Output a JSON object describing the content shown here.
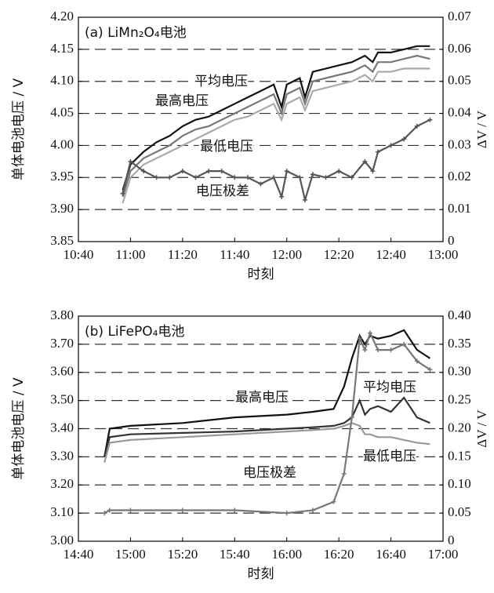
{
  "chart_data": [
    {
      "type": "line",
      "title": "(a) LiMn₂O₄电池",
      "x_label": "时刻",
      "y_label": "单体电池电压 / V",
      "y2_label": "ΔV / V",
      "grid": true,
      "xlim": [
        "10:40",
        "13:00"
      ],
      "xticks": [
        "10:40",
        "11:00",
        "11:20",
        "11:40",
        "12:00",
        "12:20",
        "12:40",
        "13:00"
      ],
      "ylim": [
        3.85,
        4.2
      ],
      "yticks": [
        3.85,
        {
          "value": 3.9,
          "label": "3.90"
        },
        3.95,
        {
          "value": 4.0,
          "label": "4.00"
        },
        4.05,
        {
          "value": 4.1,
          "label": "4.10"
        },
        4.15,
        {
          "value": 4.2,
          "label": "4.20"
        }
      ],
      "y2lim": [
        0,
        0.07
      ],
      "y2ticks": [
        0,
        0.01,
        0.02,
        0.03,
        0.04,
        0.05,
        0.06,
        0.07
      ],
      "x": [
        "10:57",
        "11:00",
        "11:05",
        "11:10",
        "11:15",
        "11:20",
        "11:25",
        "11:30",
        "11:35",
        "11:40",
        "11:45",
        "11:50",
        "11:55",
        "11:58",
        "12:00",
        "12:05",
        "12:07",
        "12:10",
        "12:15",
        "12:20",
        "12:25",
        "12:30",
        "12:33",
        "12:35",
        "12:40",
        "12:45",
        "12:50",
        "12:55"
      ],
      "series": [
        {
          "name": "最高电压",
          "color": "#111111",
          "values": [
            3.93,
            3.97,
            3.99,
            4.005,
            4.015,
            4.03,
            4.04,
            4.045,
            4.055,
            4.065,
            4.075,
            4.085,
            4.095,
            4.06,
            4.095,
            4.105,
            4.075,
            4.115,
            4.12,
            4.125,
            4.13,
            4.14,
            4.13,
            4.145,
            4.145,
            4.15,
            4.155,
            4.155
          ]
        },
        {
          "name": "平均电压",
          "color": "#777777",
          "values": [
            3.92,
            3.96,
            3.98,
            3.99,
            4.0,
            4.015,
            4.025,
            4.03,
            4.04,
            4.05,
            4.06,
            4.07,
            4.08,
            4.05,
            4.08,
            4.09,
            4.065,
            4.1,
            4.105,
            4.11,
            4.115,
            4.125,
            4.115,
            4.13,
            4.13,
            4.135,
            4.14,
            4.135
          ]
        },
        {
          "name": "最低电压",
          "color": "#aaaaaa",
          "values": [
            3.91,
            3.95,
            3.97,
            3.98,
            3.99,
            4.0,
            4.01,
            4.02,
            4.03,
            4.04,
            4.045,
            4.055,
            4.065,
            4.04,
            4.065,
            4.075,
            4.055,
            4.085,
            4.09,
            4.095,
            4.1,
            4.11,
            4.1,
            4.115,
            4.115,
            4.12,
            4.12,
            4.12
          ]
        },
        {
          "name": "电压极差",
          "color": "#555555",
          "axis": "y2",
          "values": [
            0.015,
            0.025,
            0.022,
            0.02,
            0.02,
            0.022,
            0.02,
            0.022,
            0.022,
            0.02,
            0.02,
            0.018,
            0.02,
            0.014,
            0.022,
            0.02,
            0.013,
            0.021,
            0.02,
            0.022,
            0.02,
            0.025,
            0.022,
            0.028,
            0.03,
            0.032,
            0.036,
            0.038
          ]
        }
      ]
    },
    {
      "type": "line",
      "title": "(b) LiFePO₄电池",
      "x_label": "时刻",
      "y_label": "单体电池电压 / V",
      "y2_label": "ΔV / V",
      "grid": true,
      "xlim": [
        "14:40",
        "17:00"
      ],
      "xticks": [
        "14:40",
        "15:00",
        "15:20",
        "15:40",
        "16:00",
        "16:20",
        "16:40",
        "17:00"
      ],
      "ylim": [
        3.0,
        3.8
      ],
      "yticks": [
        {
          "value": 3.0,
          "label": "3.00"
        },
        {
          "value": 3.1,
          "label": "3.10"
        },
        {
          "value": 3.2,
          "label": "3.20"
        },
        {
          "value": 3.3,
          "label": "3.30"
        },
        {
          "value": 3.4,
          "label": "3.40"
        },
        {
          "value": 3.5,
          "label": "3.50"
        },
        {
          "value": 3.6,
          "label": "3.60"
        },
        {
          "value": 3.7,
          "label": "3.70"
        },
        {
          "value": 3.8,
          "label": "3.80"
        }
      ],
      "y2lim": [
        0,
        0.4
      ],
      "y2ticks": [
        0,
        0.05,
        {
          "value": 0.1,
          "label": "0.10"
        },
        0.15,
        {
          "value": 0.2,
          "label": "0.20"
        },
        0.25,
        {
          "value": 0.3,
          "label": "0.30"
        },
        0.35,
        {
          "value": 0.4,
          "label": "0.40"
        }
      ],
      "x": [
        "14:50",
        "14:52",
        "15:00",
        "15:20",
        "15:40",
        "16:00",
        "16:10",
        "16:18",
        "16:22",
        "16:25",
        "16:28",
        "16:30",
        "16:32",
        "16:35",
        "16:40",
        "16:45",
        "16:50",
        "16:55"
      ],
      "series": [
        {
          "name": "最高电压",
          "color": "#111111",
          "values": [
            3.3,
            3.4,
            3.41,
            3.42,
            3.44,
            3.45,
            3.46,
            3.47,
            3.55,
            3.65,
            3.73,
            3.7,
            3.73,
            3.72,
            3.73,
            3.75,
            3.68,
            3.65
          ]
        },
        {
          "name": "平均电压",
          "color": "#333333",
          "values": [
            3.3,
            3.37,
            3.38,
            3.385,
            3.39,
            3.4,
            3.405,
            3.41,
            3.42,
            3.44,
            3.5,
            3.45,
            3.47,
            3.48,
            3.46,
            3.51,
            3.44,
            3.42
          ]
        },
        {
          "name": "最低电压",
          "color": "#999999",
          "values": [
            3.28,
            3.35,
            3.36,
            3.37,
            3.38,
            3.39,
            3.395,
            3.4,
            3.41,
            3.42,
            3.41,
            3.38,
            3.38,
            3.37,
            3.37,
            3.36,
            3.35,
            3.345
          ]
        },
        {
          "name": "电压极差",
          "color": "#777777",
          "axis": "y2",
          "values": [
            0.05,
            0.055,
            0.055,
            0.055,
            0.055,
            0.05,
            0.055,
            0.07,
            0.12,
            0.22,
            0.36,
            0.34,
            0.37,
            0.34,
            0.34,
            0.35,
            0.32,
            0.305
          ]
        }
      ]
    }
  ]
}
